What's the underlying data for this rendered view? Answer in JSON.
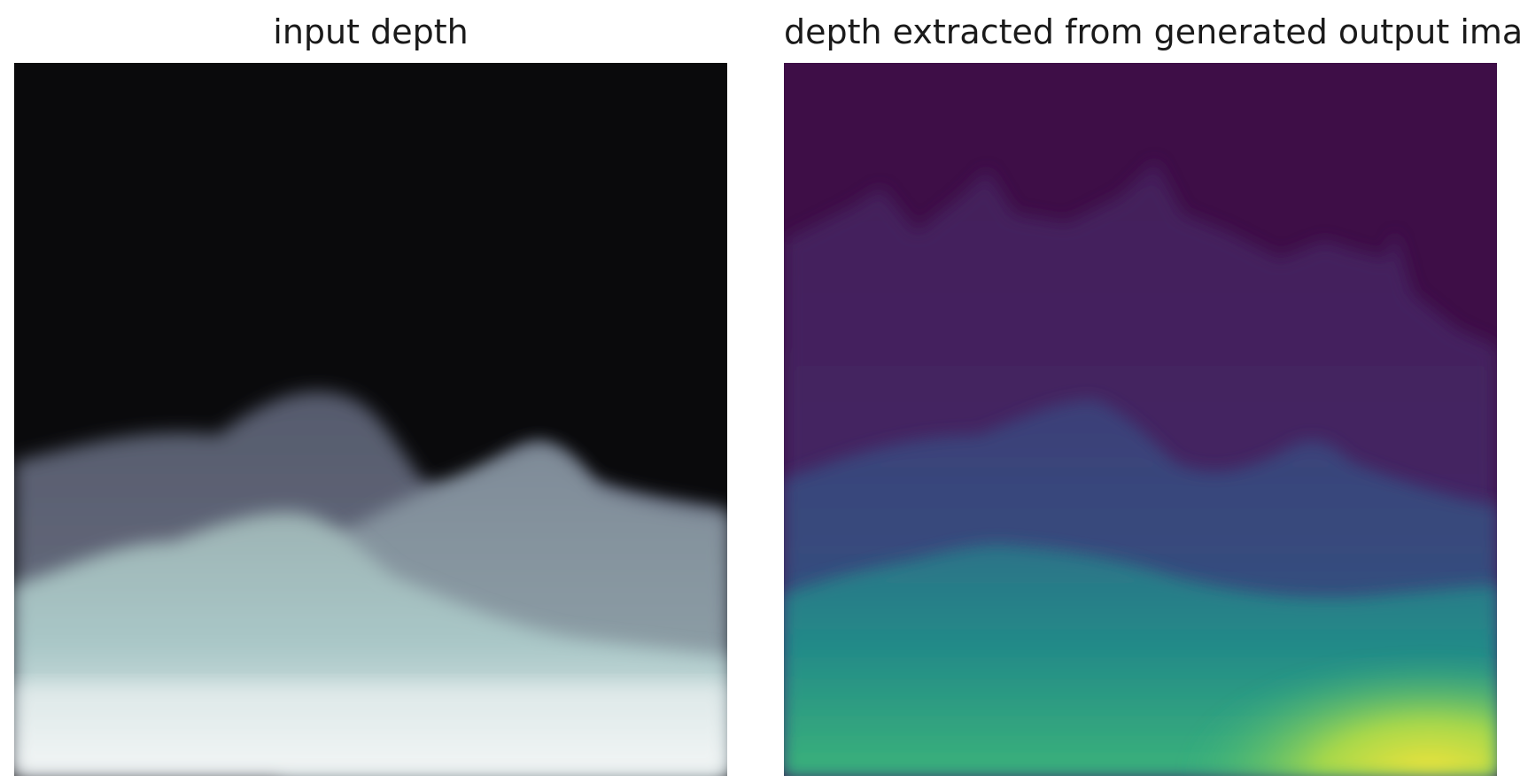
{
  "panels": [
    {
      "title": "input depth",
      "colormap": "bone"
    },
    {
      "title": "depth extracted from generated output image",
      "colormap": "viridis"
    }
  ]
}
